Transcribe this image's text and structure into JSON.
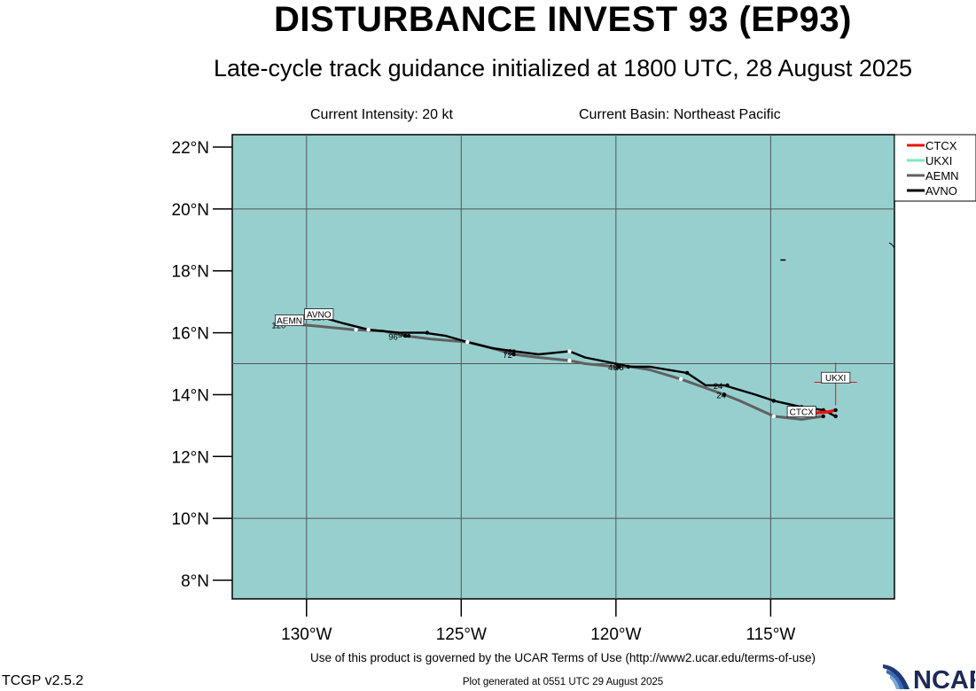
{
  "header": {
    "title": "DISTURBANCE INVEST 93 (EP93)",
    "subtitle": "Late-cycle track guidance initialized at 1800 UTC, 28 August 2025",
    "current_intensity": "Current Intensity: 20 kt",
    "current_basin": "Current Basin: Northeast Pacific"
  },
  "footer": {
    "terms": "Use of this product is governed by the UCAR Terms of Use (http://www2.ucar.edu/terms-of-use)",
    "generated": "Plot generated at 0551 UTC   29 August 2025",
    "version": "TCGP v2.5.2",
    "logo_text": "NCAR"
  },
  "colors": {
    "ocean": "#97cfcf",
    "grid": "#555555",
    "CTCX": "#e8140c",
    "UKXI": "#7fe6c0",
    "AEMN": "#606060",
    "AVNO": "#000000"
  },
  "chart_data": {
    "type": "line",
    "title": "DISTURBANCE INVEST 93 (EP93)",
    "xlim": [
      -132.4,
      -111.0
    ],
    "ylim": [
      7.4,
      22.4
    ],
    "x_ticks": [
      -130,
      -125,
      -120,
      -115
    ],
    "x_tick_labels": [
      "130°W",
      "125°W",
      "120°W",
      "115°W"
    ],
    "y_ticks": [
      8,
      10,
      12,
      14,
      16,
      18,
      20,
      22
    ],
    "y_tick_labels": [
      "8°N",
      "10°N",
      "12°N",
      "14°N",
      "16°N",
      "18°N",
      "20°N",
      "22°N"
    ],
    "grid": true,
    "legend_position": "top-right",
    "legend": [
      "CTCX",
      "UKXI",
      "AEMN",
      "AVNO"
    ],
    "series": [
      {
        "name": "AEMN",
        "x": [
          -113.3,
          -114.0,
          -114.9,
          -116.0,
          -116.5,
          -117.9,
          -118.9,
          -119.5,
          -120.0,
          -121.0,
          -121.5,
          -122.5,
          -123.3,
          -124.0,
          -124.8,
          -126.0,
          -126.8,
          -127.5,
          -128.5,
          -129.5,
          -130.6
        ],
        "y": [
          13.3,
          13.2,
          13.3,
          13.8,
          14.0,
          14.5,
          14.8,
          14.9,
          14.9,
          15.0,
          15.1,
          15.2,
          15.3,
          15.5,
          15.7,
          15.8,
          15.9,
          16.05,
          16.1,
          16.2,
          16.3
        ],
        "markers_x": [
          -113.3,
          -114.9,
          -116.5,
          -117.9,
          -119.9,
          -121.5,
          -123.3,
          -124.8,
          -126.8,
          -128.4,
          -130.6
        ],
        "markers_y": [
          13.3,
          13.3,
          14.0,
          14.5,
          14.9,
          15.1,
          15.3,
          15.7,
          15.9,
          16.1,
          16.3
        ],
        "labels": [
          {
            "text": "24",
            "x": -116.6,
            "y": 13.88
          },
          {
            "text": "48",
            "x": -120.1,
            "y": 14.78
          },
          {
            "text": "72",
            "x": -123.5,
            "y": 15.18
          },
          {
            "text": "96",
            "x": -127.2,
            "y": 15.78
          },
          {
            "text": "120",
            "x": -130.9,
            "y": 16.15
          }
        ]
      },
      {
        "name": "AVNO",
        "x": [
          -112.9,
          -113.3,
          -114.0,
          -114.9,
          -115.5,
          -116.5,
          -117.1,
          -117.7,
          -118.9,
          -119.5,
          -120.0,
          -121.0,
          -121.5,
          -122.5,
          -123.3,
          -124.0,
          -124.8,
          -125.5,
          -126.2,
          -127.0,
          -128.0,
          -128.8,
          -129.5
        ],
        "y": [
          13.3,
          13.5,
          13.6,
          13.8,
          14.0,
          14.3,
          14.3,
          14.7,
          14.9,
          14.9,
          15.0,
          15.2,
          15.4,
          15.3,
          15.4,
          15.5,
          15.7,
          15.9,
          16.0,
          16.0,
          16.1,
          16.3,
          16.5
        ],
        "markers_x": [
          -112.9,
          -113.3,
          -114.0,
          -114.9,
          -116.4,
          -117.7,
          -119.6,
          -121.5,
          -123.3,
          -124.8,
          -126.1,
          -126.7,
          -128.0,
          -129.5
        ],
        "markers_y": [
          13.3,
          13.5,
          13.6,
          13.8,
          14.3,
          14.7,
          14.9,
          15.4,
          15.4,
          15.7,
          16.0,
          15.9,
          16.1,
          16.5
        ],
        "labels": [
          {
            "text": "24",
            "x": -116.7,
            "y": 14.18
          },
          {
            "text": "48",
            "x": -119.9,
            "y": 14.78
          },
          {
            "text": "72",
            "x": -123.5,
            "y": 15.28
          },
          {
            "text": "96",
            "x": -126.9,
            "y": 15.85
          },
          {
            "text": "120",
            "x": -129.6,
            "y": 16.4
          }
        ]
      },
      {
        "name": "CTCX",
        "x": [
          -113.6,
          -113.1,
          -112.9
        ],
        "y": [
          13.4,
          13.45,
          13.5
        ],
        "markers_x": [
          -112.9
        ],
        "markers_y": [
          13.5
        ],
        "labels": []
      },
      {
        "name": "UKXI",
        "x": [
          -112.9
        ],
        "y": [
          14.4
        ],
        "markers_x": [],
        "markers_y": [],
        "labels": []
      }
    ],
    "track_tags": [
      {
        "text": "AEMN",
        "x": -130.55,
        "y": 16.4
      },
      {
        "text": "AVNO",
        "x": -129.6,
        "y": 16.6
      },
      {
        "text": "CTCX",
        "x": -114.0,
        "y": 13.45
      },
      {
        "text": "UKXI",
        "x": -112.9,
        "y": 14.55
      }
    ],
    "initial_position_cross": {
      "x": -112.9,
      "y": 14.4
    }
  }
}
